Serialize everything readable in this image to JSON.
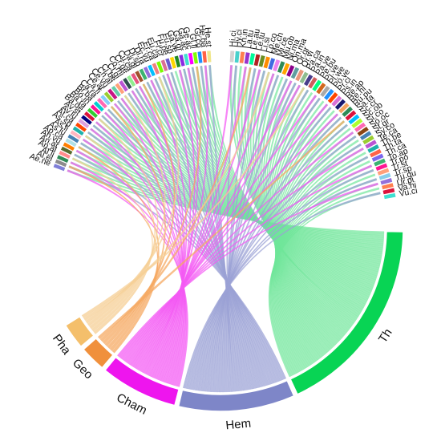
{
  "chart_data": {
    "type": "chord",
    "title": "",
    "groups": [
      {
        "id": "Pha",
        "label": "Pha",
        "color": "#f4bf6b",
        "size": 1
      },
      {
        "id": "Geo",
        "label": "Geo",
        "color": "#f0903c",
        "size": 1
      },
      {
        "id": "Cham",
        "label": "Cham",
        "color": "#ee15ee",
        "size": 3
      },
      {
        "id": "Hem",
        "label": "Hem",
        "color": "#7e86c8",
        "size": 4.5
      },
      {
        "id": "Th",
        "label": "Th",
        "color": "#08d454",
        "size": 7.8
      }
    ],
    "items_left": [
      {
        "label": "Ae.ne",
        "color": "#7f7fd8"
      },
      {
        "label": "Al.el",
        "color": "#8c8c8c"
      },
      {
        "label": "Al.li",
        "color": "#2e8b57"
      },
      {
        "label": "An.al",
        "color": "#ff8c8c"
      },
      {
        "label": "An.ar",
        "color": "#556b2f"
      },
      {
        "label": "An.vu",
        "color": "#ff7f00"
      },
      {
        "label": "Ap.ca",
        "color": "#b0e0e6"
      },
      {
        "label": "As.lu",
        "color": "#4682b4"
      },
      {
        "label": "As.li",
        "color": "#ffb6c1"
      },
      {
        "label": "As.sp",
        "color": "#20b2aa"
      },
      {
        "label": "At.ca",
        "color": "#ff4500"
      },
      {
        "label": "Av.lu",
        "color": "#dda0dd"
      },
      {
        "label": "Av.st",
        "color": "#000080"
      },
      {
        "label": "Ba.de",
        "color": "#dc143c"
      },
      {
        "label": "Ba.ra",
        "color": "#32cd32"
      },
      {
        "label": "Bo.in",
        "color": "#ff1493"
      },
      {
        "label": "Br.ba",
        "color": "#00ced1"
      },
      {
        "label": "Ca.ra",
        "color": "#ff69b4"
      },
      {
        "label": "Ca.fi",
        "color": "#87cefa"
      },
      {
        "label": "Ce.ar",
        "color": "#9acd32"
      },
      {
        "label": "Ce.vu",
        "color": "#c71585"
      },
      {
        "label": "Ch.al",
        "color": "#66cdaa"
      },
      {
        "label": "Ci.be",
        "color": "#ffa07a"
      },
      {
        "label": "Cl.gi",
        "color": "#ba55d3"
      },
      {
        "label": "Co.mi",
        "color": "#2f4f4f"
      },
      {
        "label": "Cr.ge",
        "color": "#90ee90"
      },
      {
        "label": "Cu.ca",
        "color": "#e75480"
      },
      {
        "label": "Da.gl",
        "color": "#a0522d"
      },
      {
        "label": "Di.sp",
        "color": "#3cb371"
      },
      {
        "label": "Di.ra",
        "color": "#9370db"
      },
      {
        "label": "Ec.vu",
        "color": "#00bfff"
      },
      {
        "label": "Er.ca",
        "color": "#f08080"
      },
      {
        "label": "Eu.ca",
        "color": "#7cfc00"
      },
      {
        "label": "Fr.cr",
        "color": "#db7093"
      },
      {
        "label": "Fu.pe",
        "color": "#6a5acd"
      },
      {
        "label": "Fu.sp",
        "color": "#ffd700"
      },
      {
        "label": "Ga.ve",
        "color": "#228b22"
      },
      {
        "label": "Ga.gr",
        "color": "#8a2be2"
      },
      {
        "label": "Ga.ac",
        "color": "#40e0d0"
      },
      {
        "label": "Ge.ac",
        "color": "#ff00ff"
      },
      {
        "label": "Gl.fl",
        "color": "#7fff00"
      },
      {
        "label": "Gr.co",
        "color": "#1e90ff"
      },
      {
        "label": "He.ba",
        "color": "#ff6347"
      },
      {
        "label": "He.st",
        "color": "#f0e68c"
      }
    ],
    "items_right": [
      {
        "label": "Hi.ci",
        "color": "#d3d3d3"
      },
      {
        "label": "Hy.ci",
        "color": "#48d1cc"
      },
      {
        "label": "Kn.in",
        "color": "#ff7f50"
      },
      {
        "label": "La.tu",
        "color": "#9932cc"
      },
      {
        "label": "Le.au",
        "color": "#00fa9a"
      },
      {
        "label": "Le.tu",
        "color": "#b22222"
      },
      {
        "label": "Li.si",
        "color": "#6b8e23"
      },
      {
        "label": "Lo.co",
        "color": "#ff8c00"
      },
      {
        "label": "Me.ch",
        "color": "#4169e1"
      },
      {
        "label": "Mi.ce",
        "color": "#ee82ee"
      },
      {
        "label": "Mu.ob",
        "color": "#2e8b57"
      },
      {
        "label": "Ni.ma",
        "color": "#ffa500"
      },
      {
        "label": "On.ma",
        "color": "#8b008b"
      },
      {
        "label": "Or.gr",
        "color": "#5f9ea0"
      },
      {
        "label": "Or.vi",
        "color": "#e9967a"
      },
      {
        "label": "Pa.ca",
        "color": "#8fbc8f"
      },
      {
        "label": "Pa.in",
        "color": "#483d8b"
      },
      {
        "label": "Pa.ve",
        "color": "#cd5c5c"
      },
      {
        "label": "Pe.bu",
        "color": "#00ff7f"
      },
      {
        "label": "Pi.ve",
        "color": "#d2691e"
      },
      {
        "label": "Pl.we",
        "color": "#a9a9a9"
      },
      {
        "label": "Po.ve",
        "color": "#1e90ff"
      },
      {
        "label": "Pr.ci",
        "color": "#ff4500"
      },
      {
        "label": "Ps.in",
        "color": "#da70d6"
      },
      {
        "label": "Re.ap",
        "color": "#191970"
      },
      {
        "label": "Re.hi",
        "color": "#f4a460"
      },
      {
        "label": "Ru.pu",
        "color": "#2e8b57"
      },
      {
        "label": "Sa.ta",
        "color": "#dc143c"
      },
      {
        "label": "Sc.cr",
        "color": "#00bfff"
      },
      {
        "label": "Sc.ob",
        "color": "#adff2f"
      },
      {
        "label": "Si.co",
        "color": "#ff69b4"
      },
      {
        "label": "So.oc",
        "color": "#8b4513"
      },
      {
        "label": "St.gr",
        "color": "#4682b4"
      },
      {
        "label": "Sy.co",
        "color": "#9acd32"
      },
      {
        "label": "Te.ca",
        "color": "#ba55d3"
      },
      {
        "label": "Th.be",
        "color": "#20b2aa"
      },
      {
        "label": "Th.ta",
        "color": "#ff6347"
      },
      {
        "label": "Th.ca",
        "color": "#7b68ee"
      },
      {
        "label": "To.ap",
        "color": "#3cb371"
      },
      {
        "label": "Tr.po",
        "color": "#ff1493"
      },
      {
        "label": "Tr.st",
        "color": "#ffa07a"
      },
      {
        "label": "Tr.sp",
        "color": "#87ceeb"
      },
      {
        "label": "Tu.gu",
        "color": "#9370db"
      },
      {
        "label": "Ur.pi",
        "color": "#ff7f50"
      },
      {
        "label": "Va.hi",
        "color": "#dc143c"
      },
      {
        "label": "Vu.ci",
        "color": "#40e0d0"
      }
    ],
    "links": {
      "Pha": [
        3,
        9,
        14,
        22,
        31,
        52,
        60
      ],
      "Geo": [
        1,
        6,
        18,
        27,
        40,
        48,
        71
      ],
      "Cham": [
        0,
        2,
        5,
        8,
        11,
        13,
        16,
        19,
        21,
        24,
        26,
        29,
        33,
        36,
        38,
        42,
        44,
        47,
        50,
        53,
        57,
        59,
        63,
        66,
        69,
        74,
        78,
        82,
        86
      ],
      "Hem": [
        1,
        4,
        7,
        10,
        12,
        15,
        17,
        20,
        23,
        25,
        28,
        30,
        32,
        34,
        37,
        39,
        41,
        43,
        45,
        49,
        51,
        54,
        56,
        58,
        61,
        64,
        67,
        70,
        72,
        75,
        77,
        80,
        83,
        85,
        88
      ],
      "Th": [
        0,
        1,
        2,
        3,
        4,
        5,
        6,
        7,
        8,
        9,
        10,
        11,
        12,
        13,
        14,
        15,
        16,
        17,
        18,
        19,
        20,
        21,
        22,
        23,
        24,
        25,
        26,
        27,
        28,
        29,
        30,
        31,
        32,
        33,
        34,
        35,
        36,
        37,
        38,
        39,
        40,
        41,
        42,
        43,
        44,
        45,
        46,
        47,
        48,
        49,
        50,
        51,
        52,
        53,
        54,
        55,
        56,
        57,
        58,
        59,
        60,
        61,
        62,
        63,
        64,
        65,
        66,
        67,
        68,
        69,
        70,
        71,
        72,
        73,
        74,
        75,
        76,
        77,
        78,
        79,
        80,
        81,
        82,
        83,
        84,
        85,
        86,
        87,
        88
      ]
    }
  }
}
